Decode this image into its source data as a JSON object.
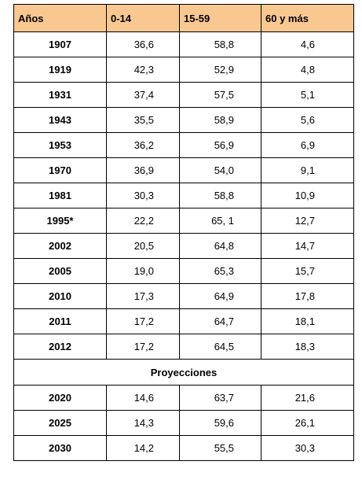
{
  "table": {
    "headers": [
      "Años",
      "0-14",
      "15-59",
      "60 y más"
    ],
    "rows": [
      [
        "1907",
        "36,6",
        "58,8",
        "4,6"
      ],
      [
        "1919",
        "42,3",
        "52,9",
        "4,8"
      ],
      [
        "1931",
        "37,4",
        "57,5",
        "5,1"
      ],
      [
        "1943",
        "35,5",
        "58,9",
        "5,6"
      ],
      [
        "1953",
        "36,2",
        "56,9",
        "6,9"
      ],
      [
        "1970",
        "36,9",
        "54,0",
        "9,1"
      ],
      [
        "1981",
        "30,3",
        "58,8",
        "10,9"
      ],
      [
        "1995*",
        "22,2",
        "65, 1",
        "12,7"
      ],
      [
        "2002",
        "20,5",
        "64,8",
        "14,7"
      ],
      [
        "2005",
        "19,0",
        "65,3",
        "15,7"
      ],
      [
        "2010",
        "17,3",
        "64,9",
        "17,8"
      ],
      [
        "2011",
        "17,2",
        "64,7",
        "18,1"
      ],
      [
        "2012",
        "17,2",
        "64,5",
        "18,3"
      ]
    ],
    "section_label": "Proyecciones",
    "projection_rows": [
      [
        "2020",
        "14,6",
        "63,7",
        "21,6"
      ],
      [
        "2025",
        "14,3",
        "59,6",
        "26,1"
      ],
      [
        "2030",
        "14,2",
        "55,5",
        "30,3"
      ]
    ],
    "header_color": "#f9c890"
  }
}
